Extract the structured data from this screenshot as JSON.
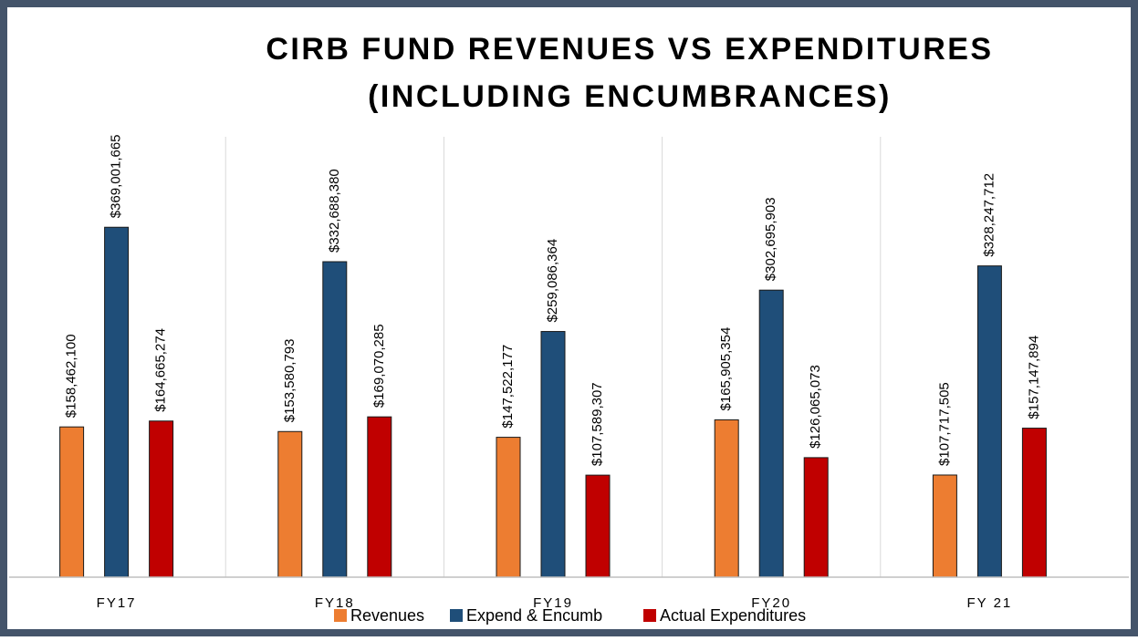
{
  "chart_data": {
    "type": "bar",
    "title": [
      "CIRB FUND REVENUES VS EXPENDITURES",
      "(INCLUDING ENCUMBRANCES)"
    ],
    "categories": [
      "FY17",
      "FY18",
      "FY19",
      "FY20",
      "FY 21"
    ],
    "series": [
      {
        "name": "Revenues",
        "color": "#ed7d31",
        "values": [
          158462100,
          153580793,
          147522177,
          165905354,
          107717505
        ],
        "value_labels": [
          "$158,462,100",
          "$153,580,793",
          "$147,522,177",
          "$165,905,354",
          "$107,717,505"
        ]
      },
      {
        "name": "Expend & Encumb",
        "color": "#1f4e79",
        "values": [
          369001665,
          332688380,
          259086364,
          302695903,
          328247712
        ],
        "value_labels": [
          "$369,001,665",
          "$332,688,380",
          "$259,086,364",
          "$302,695,903",
          "$328,247,712"
        ]
      },
      {
        "name": "Actual Expenditures",
        "color": "#c00000",
        "values": [
          164665274,
          169070285,
          107589307,
          126065073,
          157147894
        ],
        "value_labels": [
          "$164,665,274",
          "$169,070,285",
          "$107,589,307",
          "$126,065,073",
          "$157,147,894"
        ]
      }
    ],
    "ylim": [
      0,
      400000000
    ],
    "legend": "bottom"
  }
}
